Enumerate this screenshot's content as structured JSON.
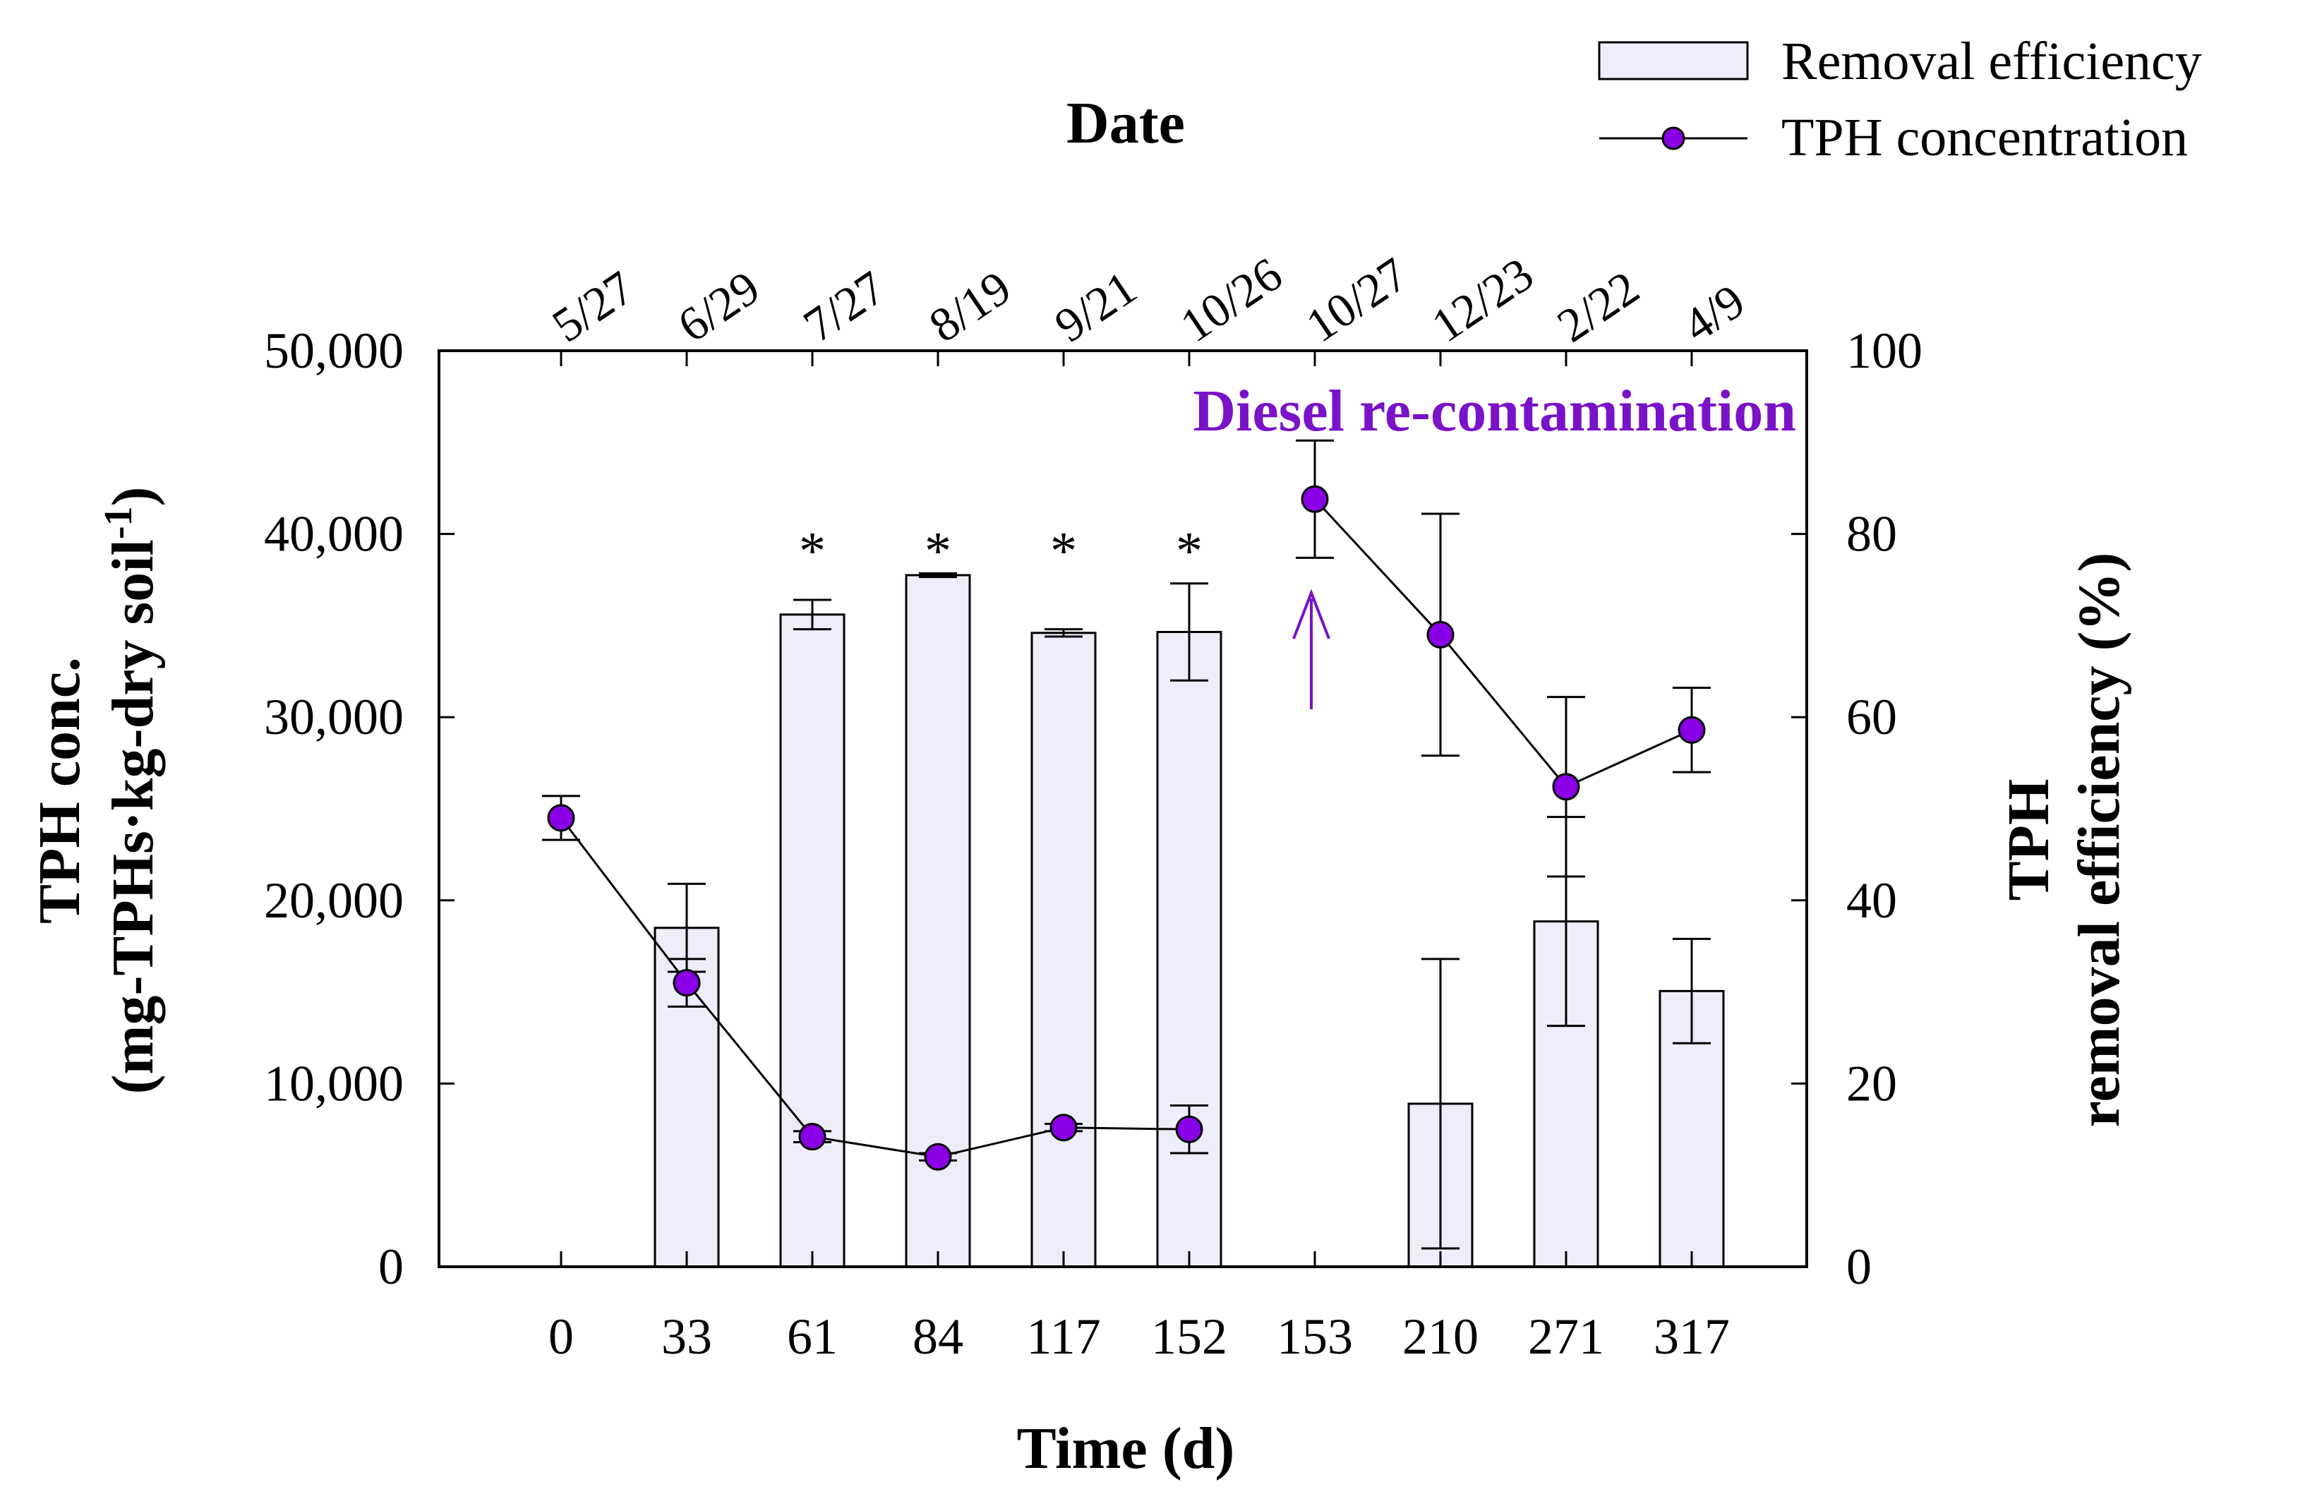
{
  "chart_data": {
    "type": "bar+line",
    "title": "Date",
    "xlabel": "Time (d)",
    "ylabel_left_line1": "TPH conc.",
    "ylabel_left_line2_main": "(mg-TPHs·kg-dry soil",
    "ylabel_left_line2_sup": "-1",
    "ylabel_left_line2_end": ")",
    "ylabel_right_line1": "TPH",
    "ylabel_right_line2": "removal efficiency (%)",
    "categories": [
      "0",
      "33",
      "61",
      "84",
      "117",
      "152",
      "153",
      "210",
      "271",
      "317"
    ],
    "dates": [
      "5/27",
      "6/29",
      "7/27",
      "8/19",
      "9/21",
      "10/26",
      "10/27",
      "12/23",
      "2/22",
      "4/9"
    ],
    "y_left_ticks": [
      "0",
      "10,000",
      "20,000",
      "30,000",
      "40,000",
      "50,000"
    ],
    "y_left_range": [
      0,
      50000
    ],
    "y_right_ticks": [
      "0",
      "20",
      "40",
      "60",
      "80",
      "100"
    ],
    "y_right_range": [
      0,
      100
    ],
    "series": [
      {
        "name": "Removal efficiency",
        "kind": "bar",
        "axis": "right",
        "color": "#eeeefa",
        "values": [
          null,
          37.0,
          71.2,
          75.5,
          69.2,
          69.3,
          null,
          17.8,
          37.7,
          30.1
        ],
        "errors": [
          null,
          4.8,
          1.6,
          0.2,
          0.4,
          5.3,
          null,
          15.8,
          11.4,
          5.7
        ]
      },
      {
        "name": "TPH concentration",
        "kind": "line",
        "axis": "left",
        "color": "#8a00e6",
        "values": [
          24500,
          15500,
          7100,
          6000,
          7600,
          7500,
          41900,
          34500,
          26200,
          29300
        ],
        "errors": [
          1200,
          1300,
          300,
          200,
          200,
          1300,
          3200,
          6600,
          4900,
          2300
        ]
      }
    ],
    "significance_marks": [
      "",
      "",
      "*",
      "*",
      "*",
      "*",
      "",
      "",
      "",
      ""
    ],
    "annotation": {
      "text": "Diesel re-contamination",
      "at_category": "153",
      "color": "#7a12c8"
    },
    "legend": {
      "position": "top-right",
      "entries": [
        "Removal efficiency",
        "TPH concentration"
      ]
    }
  }
}
